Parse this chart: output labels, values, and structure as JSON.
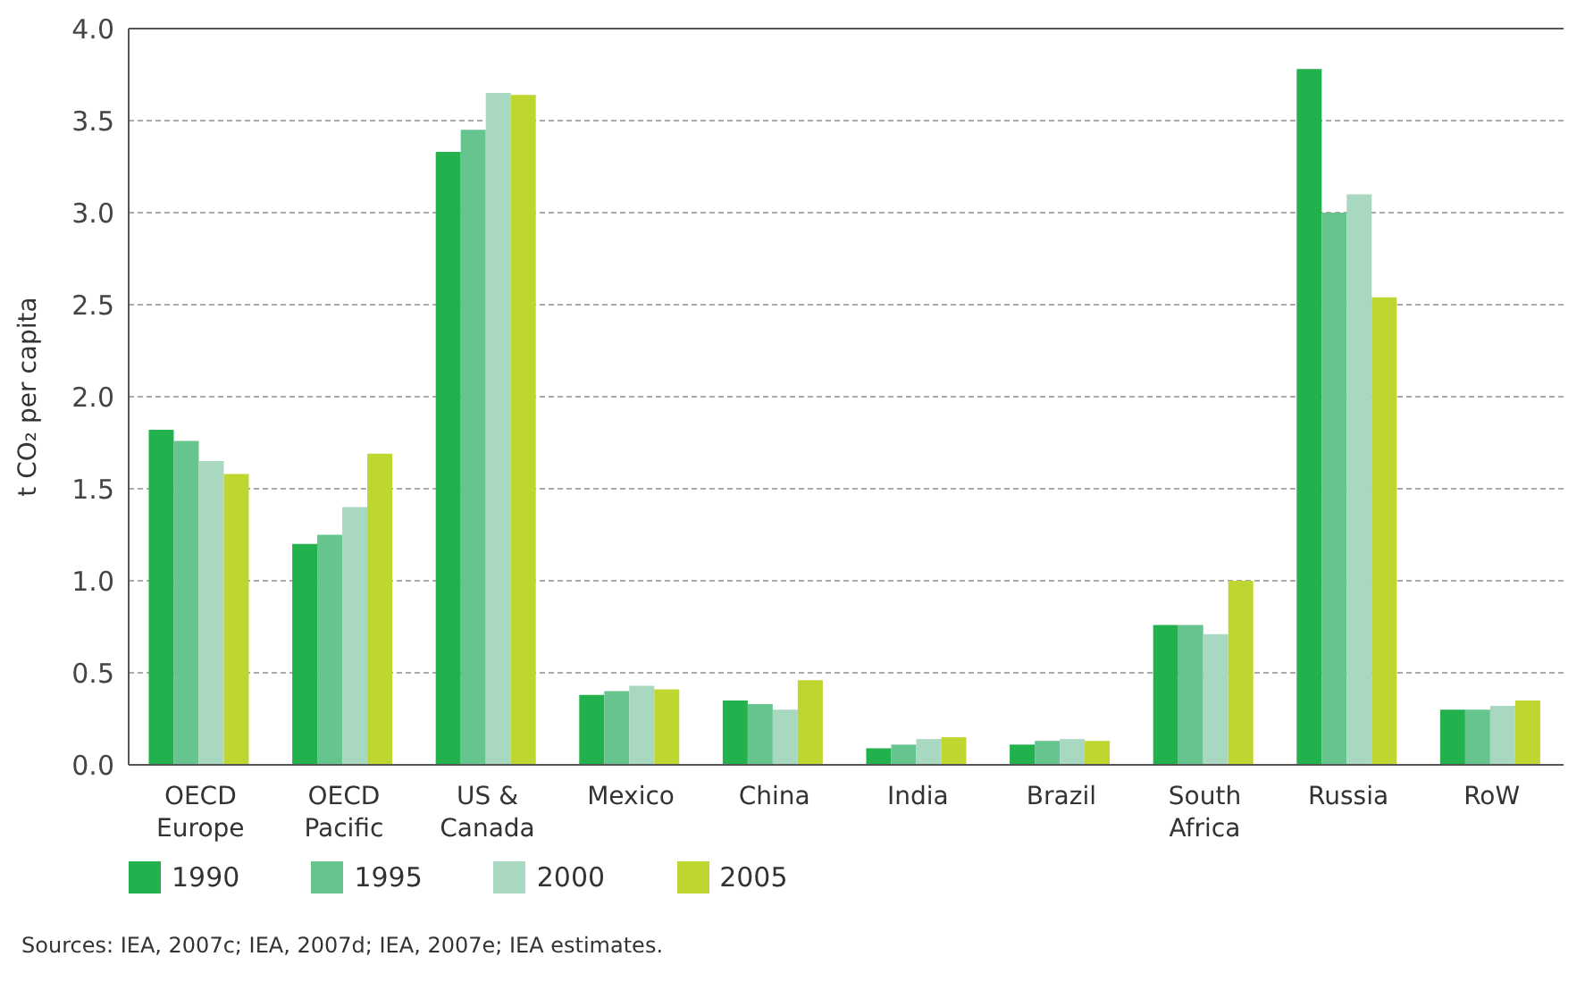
{
  "chart_data": {
    "type": "bar",
    "ylabel": "t CO₂ per capita",
    "categories": [
      "OECD\nEurope",
      "OECD\nPacific",
      "US &\nCanada",
      "Mexico",
      "China",
      "India",
      "Brazil",
      "South\nAfrica",
      "Russia",
      "RoW"
    ],
    "series": [
      {
        "name": "1990",
        "color": "#22b14c",
        "values": [
          1.82,
          1.2,
          3.33,
          0.38,
          0.35,
          0.09,
          0.11,
          0.76,
          3.78,
          0.3
        ]
      },
      {
        "name": "1995",
        "color": "#66c48e",
        "values": [
          1.76,
          1.25,
          3.45,
          0.4,
          0.33,
          0.11,
          0.13,
          0.76,
          3.0,
          0.3
        ]
      },
      {
        "name": "2000",
        "color": "#a8d8c0",
        "values": [
          1.65,
          1.4,
          3.65,
          0.43,
          0.3,
          0.14,
          0.14,
          0.71,
          3.1,
          0.32
        ]
      },
      {
        "name": "2005",
        "color": "#bfd630",
        "values": [
          1.58,
          1.69,
          3.64,
          0.41,
          0.46,
          0.15,
          0.13,
          1.0,
          2.54,
          0.35
        ]
      }
    ],
    "ylim": [
      0,
      4
    ],
    "yticks": [
      {
        "value": 0,
        "label": "0.0"
      },
      {
        "value": 0.5,
        "label": "0.5"
      },
      {
        "value": 1,
        "label": "1.0"
      },
      {
        "value": 1.5,
        "label": "1.5"
      },
      {
        "value": 2,
        "label": "2.0"
      },
      {
        "value": 2.5,
        "label": "2.5"
      },
      {
        "value": 3,
        "label": "3.0"
      },
      {
        "value": 3.5,
        "label": "3.5"
      },
      {
        "value": 4,
        "label": "4.0"
      }
    ],
    "grid": "y",
    "legend": "bottom left",
    "annotations": [
      "Sources: IEA, 2007c; IEA, 2007d; IEA, 2007e; IEA estimates."
    ]
  }
}
